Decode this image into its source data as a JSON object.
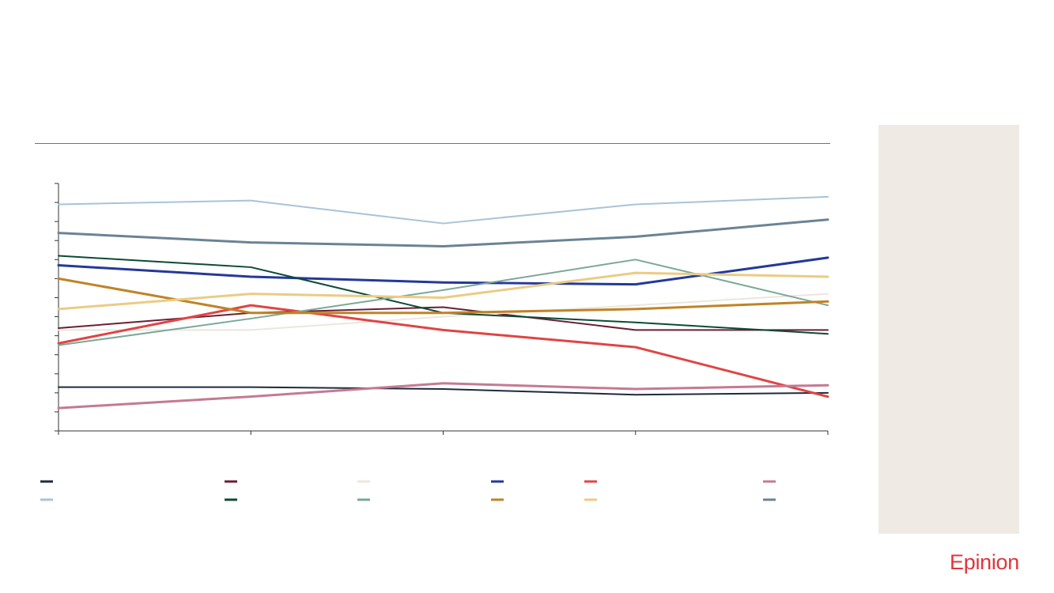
{
  "brand": {
    "name": "Epinion",
    "color": "#e0353b"
  },
  "side_panel": {
    "color": "#efebe4"
  },
  "chart_data": {
    "type": "line",
    "categories": [
      "",
      "",
      "",
      "",
      ""
    ],
    "ylim": [
      0,
      13
    ],
    "y_tick_count": 14,
    "grid": false,
    "legend": "bottom",
    "series": [
      {
        "color": "#1d2b3e",
        "width": 2,
        "values": [
          2.3,
          2.3,
          2.2,
          1.9,
          2.0
        ]
      },
      {
        "color": "#6b1f33",
        "width": 2,
        "values": [
          5.4,
          6.2,
          6.5,
          5.3,
          5.3
        ]
      },
      {
        "color": "#ece6dd",
        "width": 2,
        "values": [
          5.3,
          5.3,
          6.0,
          6.6,
          7.2
        ]
      },
      {
        "color": "#23399a",
        "width": 3,
        "values": [
          8.7,
          8.1,
          7.8,
          7.7,
          9.1
        ]
      },
      {
        "color": "#e04444",
        "width": 3,
        "values": [
          4.6,
          6.6,
          5.3,
          4.4,
          1.8
        ]
      },
      {
        "color": "#c47a93",
        "width": 3,
        "values": [
          1.2,
          1.8,
          2.5,
          2.2,
          2.4
        ]
      },
      {
        "color": "#a8c3d8",
        "width": 2,
        "values": [
          11.9,
          12.1,
          10.9,
          11.9,
          12.3
        ]
      },
      {
        "color": "#0d4a36",
        "width": 2,
        "values": [
          9.2,
          8.6,
          6.2,
          5.7,
          5.1
        ]
      },
      {
        "color": "#7ba898",
        "width": 2,
        "values": [
          4.5,
          5.9,
          7.4,
          9.0,
          6.6
        ]
      },
      {
        "color": "#c08326",
        "width": 3,
        "values": [
          8.0,
          6.2,
          6.2,
          6.4,
          6.8
        ]
      },
      {
        "color": "#ebcb85",
        "width": 3,
        "values": [
          6.4,
          7.2,
          7.0,
          8.3,
          8.1
        ]
      },
      {
        "color": "#6b8393",
        "width": 3,
        "values": [
          10.4,
          9.9,
          9.7,
          10.2,
          11.1
        ]
      }
    ]
  }
}
